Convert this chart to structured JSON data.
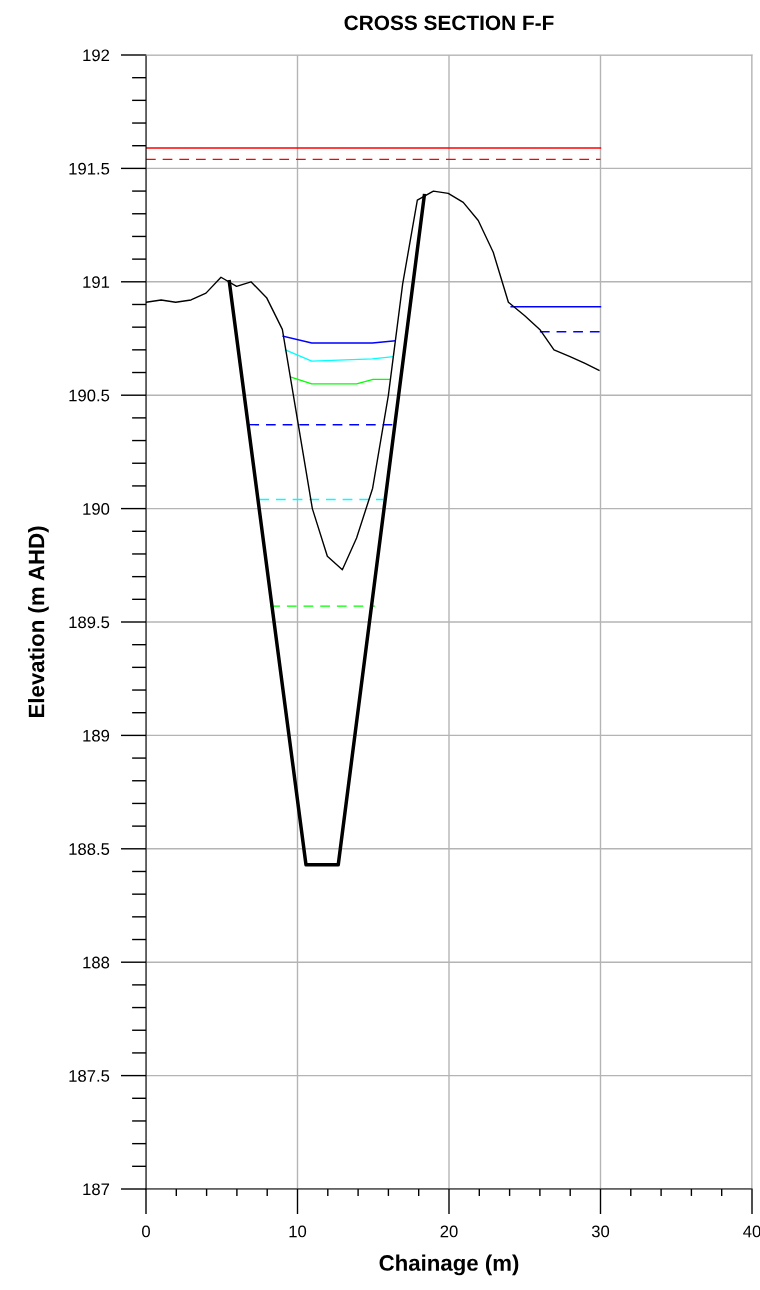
{
  "chart_data": {
    "type": "line",
    "title": "CROSS SECTION F-F",
    "xlabel": "Chainage (m)",
    "ylabel": "Elevation (m AHD)",
    "xlim": [
      0,
      40
    ],
    "ylim": [
      187,
      192
    ],
    "xticks": [
      0,
      10,
      20,
      30,
      40
    ],
    "yticks": [
      187,
      187.5,
      188,
      188.5,
      189,
      189.5,
      190,
      190.5,
      191,
      191.5,
      192
    ],
    "grid": true,
    "legend": false,
    "marker": "none",
    "series": [
      {
        "color": "#ff0000",
        "line_style": "solid",
        "x": [
          0,
          30
        ],
        "values": [
          191.59,
          191.59
        ]
      },
      {
        "color": "#ff0000",
        "line_style": "dashed",
        "x": [
          0,
          30
        ],
        "values": [
          191.54,
          191.54
        ]
      },
      {
        "color": "#0000ff",
        "line_style": "solid",
        "x": [
          24.1,
          30
        ],
        "values": [
          190.89,
          190.89
        ]
      },
      {
        "color": "#0000ff",
        "line_style": "dashed",
        "x": [
          26.0,
          30
        ],
        "values": [
          190.78,
          190.78
        ]
      },
      {
        "color": "#0000ff",
        "line_style": "solid",
        "x": [
          9.05,
          10.94,
          14.94,
          16.43
        ],
        "values": [
          190.76,
          190.73,
          190.73,
          190.74
        ]
      },
      {
        "color": "#00ffff",
        "line_style": "solid",
        "x": [
          9.2,
          10.94,
          14.94,
          16.3
        ],
        "values": [
          190.7,
          190.65,
          190.66,
          190.67
        ]
      },
      {
        "color": "#00ff00",
        "line_style": "solid",
        "x": [
          9.57,
          10.94,
          13.9,
          14.99,
          16.05
        ],
        "values": [
          190.58,
          190.55,
          190.55,
          190.57,
          190.57
        ]
      },
      {
        "color": "#0000ff",
        "line_style": "dashed",
        "x": [
          6.82,
          16.43
        ],
        "values": [
          190.37,
          190.37
        ]
      },
      {
        "color": "#00ffff",
        "line_style": "dashed",
        "x": [
          7.48,
          15.66
        ],
        "values": [
          190.04,
          190.04
        ]
      },
      {
        "color": "#00ff00",
        "line_style": "dashed",
        "x": [
          8.2,
          15.1
        ],
        "values": [
          189.57,
          189.57
        ]
      },
      {
        "color": "#000000",
        "line_style": "solid",
        "x": [
          0,
          1.0,
          1.96,
          2.97,
          3.96,
          4.95,
          5.98,
          6.93,
          7.96,
          9.0,
          10.98,
          11.97,
          12.96,
          13.9,
          14.96,
          16.0,
          16.94,
          17.91,
          18.97,
          19.95,
          20.94,
          21.93,
          22.92,
          23.92,
          25.0,
          25.99,
          26.93,
          27.99,
          28.98,
          29.9
        ],
        "values": [
          190.91,
          190.92,
          190.91,
          190.92,
          190.95,
          191.02,
          190.98,
          191.0,
          190.93,
          190.79,
          190.0,
          189.79,
          189.73,
          189.87,
          190.09,
          190.5,
          190.99,
          191.36,
          191.4,
          191.39,
          191.35,
          191.27,
          191.13,
          190.91,
          190.85,
          190.79,
          190.7,
          190.67,
          190.64,
          190.61
        ]
      },
      {
        "color": "#000000",
        "line_style": "solid",
        "x": [
          5.5,
          10.56,
          12.69,
          18.37
        ],
        "values": [
          191.0,
          188.43,
          188.43,
          191.38
        ]
      }
    ]
  }
}
